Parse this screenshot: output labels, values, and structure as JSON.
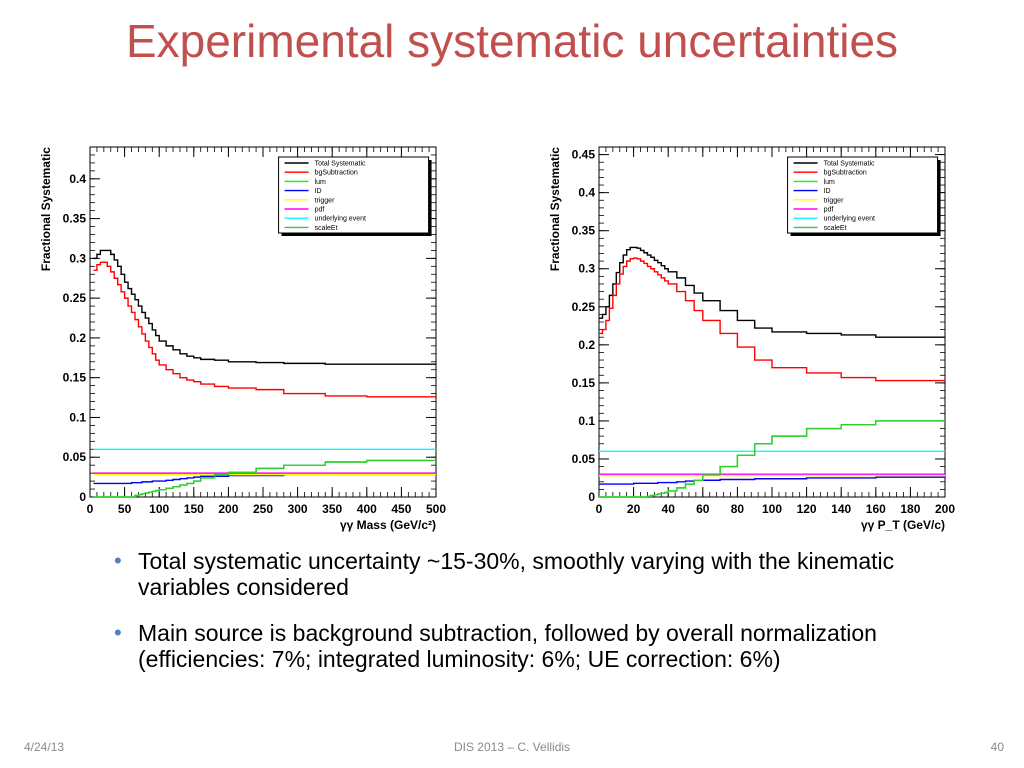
{
  "title": "Experimental systematic uncertainties",
  "chart_data": [
    {
      "type": "line",
      "xlabel": "γγ Mass (GeV/c²)",
      "ylabel": "Fractional Systematic",
      "xlim": [
        0,
        500
      ],
      "ylim": [
        0,
        0.44
      ],
      "xticks": [
        0,
        50,
        100,
        150,
        200,
        250,
        300,
        350,
        400,
        450,
        500
      ],
      "xtick_labels": [
        "0",
        "50",
        "100",
        "150",
        "200",
        "250",
        "300",
        "350",
        "400",
        "450",
        "500"
      ],
      "yticks": [
        0,
        0.05,
        0.1,
        0.15,
        0.2,
        0.25,
        0.3,
        0.35,
        0.4
      ],
      "ytick_labels": [
        "0",
        "0.05",
        "0.1",
        "0.15",
        "0.2",
        "0.25",
        "0.3",
        "0.35",
        "0.4"
      ],
      "legend_position": "top-right",
      "x_edges": [
        5,
        10,
        15,
        20,
        25,
        30,
        35,
        40,
        45,
        50,
        55,
        60,
        65,
        70,
        75,
        80,
        85,
        90,
        95,
        100,
        110,
        120,
        130,
        140,
        150,
        160,
        180,
        200,
        240,
        280,
        340,
        400,
        500
      ],
      "series": [
        {
          "name": "Total Systematic",
          "color": "#000000",
          "values": [
            0.3,
            0.305,
            0.31,
            0.31,
            0.31,
            0.305,
            0.298,
            0.29,
            0.28,
            0.27,
            0.262,
            0.255,
            0.248,
            0.24,
            0.232,
            0.225,
            0.218,
            0.21,
            0.203,
            0.196,
            0.19,
            0.185,
            0.18,
            0.177,
            0.175,
            0.173,
            0.172,
            0.17,
            0.169,
            0.168,
            0.167,
            0.167
          ]
        },
        {
          "name": "bgSubtraction",
          "color": "#ff0000",
          "values": [
            0.285,
            0.292,
            0.295,
            0.295,
            0.29,
            0.283,
            0.275,
            0.267,
            0.258,
            0.25,
            0.24,
            0.232,
            0.223,
            0.214,
            0.205,
            0.196,
            0.188,
            0.18,
            0.172,
            0.166,
            0.16,
            0.155,
            0.15,
            0.147,
            0.145,
            0.142,
            0.139,
            0.137,
            0.135,
            0.13,
            0.127,
            0.126
          ]
        },
        {
          "name": "lum",
          "color": "#00ff00",
          "values": [
            0,
            0,
            0,
            0,
            0,
            0,
            0,
            0,
            0,
            0,
            0,
            0,
            0.002,
            0.003,
            0.004,
            0.005,
            0.006,
            0.007,
            0.008,
            0.009,
            0.011,
            0.013,
            0.015,
            0.017,
            0.02,
            0.024,
            0.028,
            0.031,
            0.036,
            0.04,
            0.044,
            0.046
          ]
        },
        {
          "name": "ID",
          "color": "#0000ff",
          "values": [
            0.017,
            0.017,
            0.017,
            0.017,
            0.017,
            0.017,
            0.017,
            0.017,
            0.017,
            0.017,
            0.017,
            0.018,
            0.018,
            0.018,
            0.019,
            0.019,
            0.019,
            0.02,
            0.02,
            0.02,
            0.021,
            0.022,
            0.023,
            0.024,
            0.025,
            0.026,
            0.026,
            0.027,
            0.027,
            0.028,
            0.028,
            0.028
          ]
        },
        {
          "name": "trigger",
          "color": "#ffff00",
          "values": [
            0.028,
            0.028,
            0.028,
            0.028,
            0.028,
            0.028,
            0.028,
            0.028,
            0.028,
            0.028,
            0.028,
            0.028,
            0.028,
            0.028,
            0.028,
            0.028,
            0.028,
            0.028,
            0.028,
            0.028,
            0.028,
            0.028,
            0.028,
            0.028,
            0.028,
            0.028,
            0.028,
            0.028,
            0.028,
            0.028,
            0.028,
            0.028
          ]
        },
        {
          "name": "pdf",
          "color": "#ff00ff",
          "values": [
            0.03,
            0.03,
            0.03,
            0.03,
            0.03,
            0.03,
            0.03,
            0.03,
            0.03,
            0.03,
            0.03,
            0.03,
            0.03,
            0.03,
            0.03,
            0.03,
            0.03,
            0.03,
            0.03,
            0.03,
            0.03,
            0.03,
            0.03,
            0.03,
            0.03,
            0.03,
            0.03,
            0.03,
            0.03,
            0.03,
            0.03,
            0.03
          ]
        },
        {
          "name": "underlying event",
          "color": "#00ffff",
          "values": [
            0.06,
            0.06,
            0.06,
            0.06,
            0.06,
            0.06,
            0.06,
            0.06,
            0.06,
            0.06,
            0.06,
            0.06,
            0.06,
            0.06,
            0.06,
            0.06,
            0.06,
            0.06,
            0.06,
            0.06,
            0.06,
            0.06,
            0.06,
            0.06,
            0.06,
            0.06,
            0.06,
            0.06,
            0.06,
            0.06,
            0.06,
            0.06
          ]
        },
        {
          "name": "scaleEt",
          "color": "#33cc33",
          "values": [
            0,
            0,
            0,
            0,
            0,
            0,
            0,
            0,
            0,
            0,
            0,
            0,
            0.002,
            0.003,
            0.004,
            0.005,
            0.006,
            0.007,
            0.008,
            0.009,
            0.011,
            0.013,
            0.015,
            0.017,
            0.02,
            0.024,
            0.028,
            0.031,
            0.036,
            0.04,
            0.044,
            0.046
          ]
        }
      ]
    },
    {
      "type": "line",
      "xlabel": "γγ P_T (GeV/c)",
      "ylabel": "Fractional Systematic",
      "xlim": [
        0,
        200
      ],
      "ylim": [
        0,
        0.46
      ],
      "xticks": [
        0,
        20,
        40,
        60,
        80,
        100,
        120,
        140,
        160,
        180,
        200
      ],
      "xtick_labels": [
        "0",
        "20",
        "40",
        "60",
        "80",
        "100",
        "120",
        "140",
        "160",
        "180",
        "200"
      ],
      "yticks": [
        0,
        0.05,
        0.1,
        0.15,
        0.2,
        0.25,
        0.3,
        0.35,
        0.4,
        0.45
      ],
      "ytick_labels": [
        "0",
        "0.05",
        "0.1",
        "0.15",
        "0.2",
        "0.25",
        "0.3",
        "0.35",
        "0.4",
        "0.45"
      ],
      "legend_position": "top-right",
      "x_edges": [
        0,
        2,
        4,
        6,
        8,
        10,
        12,
        14,
        16,
        18,
        20,
        22,
        24,
        26,
        28,
        30,
        32,
        34,
        36,
        38,
        40,
        45,
        50,
        55,
        60,
        70,
        80,
        90,
        100,
        120,
        140,
        160,
        200
      ],
      "series": [
        {
          "name": "Total Systematic",
          "color": "#000000",
          "values": [
            0.235,
            0.24,
            0.25,
            0.265,
            0.28,
            0.295,
            0.308,
            0.318,
            0.325,
            0.328,
            0.328,
            0.327,
            0.324,
            0.321,
            0.318,
            0.315,
            0.311,
            0.308,
            0.304,
            0.3,
            0.296,
            0.288,
            0.278,
            0.268,
            0.258,
            0.245,
            0.232,
            0.222,
            0.217,
            0.215,
            0.213,
            0.21
          ]
        },
        {
          "name": "bgSubtraction",
          "color": "#ff0000",
          "values": [
            0.215,
            0.22,
            0.232,
            0.248,
            0.265,
            0.28,
            0.293,
            0.303,
            0.31,
            0.313,
            0.314,
            0.313,
            0.31,
            0.307,
            0.303,
            0.3,
            0.296,
            0.292,
            0.288,
            0.284,
            0.28,
            0.27,
            0.258,
            0.245,
            0.232,
            0.215,
            0.197,
            0.18,
            0.17,
            0.163,
            0.157,
            0.153
          ]
        },
        {
          "name": "lum",
          "color": "#00ff00",
          "values": [
            0,
            0,
            0,
            0,
            0,
            0,
            0,
            0,
            0,
            0,
            0,
            0,
            0,
            0,
            0.001,
            0.002,
            0.003,
            0.004,
            0.005,
            0.006,
            0.008,
            0.012,
            0.017,
            0.022,
            0.029,
            0.04,
            0.055,
            0.07,
            0.08,
            0.09,
            0.095,
            0.1
          ]
        },
        {
          "name": "ID",
          "color": "#0000ff",
          "values": [
            0.017,
            0.017,
            0.017,
            0.017,
            0.017,
            0.017,
            0.017,
            0.017,
            0.017,
            0.017,
            0.018,
            0.018,
            0.018,
            0.018,
            0.018,
            0.018,
            0.018,
            0.019,
            0.019,
            0.019,
            0.019,
            0.02,
            0.021,
            0.022,
            0.022,
            0.023,
            0.023,
            0.024,
            0.024,
            0.025,
            0.025,
            0.026
          ]
        },
        {
          "name": "trigger",
          "color": "#ffff00",
          "values": [
            0.028,
            0.028,
            0.028,
            0.028,
            0.028,
            0.028,
            0.028,
            0.028,
            0.028,
            0.028,
            0.028,
            0.028,
            0.028,
            0.028,
            0.028,
            0.028,
            0.028,
            0.028,
            0.028,
            0.028,
            0.028,
            0.028,
            0.028,
            0.028,
            0.028,
            0.028,
            0.028,
            0.028,
            0.028,
            0.028,
            0.028,
            0.028
          ]
        },
        {
          "name": "pdf",
          "color": "#ff00ff",
          "values": [
            0.03,
            0.03,
            0.03,
            0.03,
            0.03,
            0.03,
            0.03,
            0.03,
            0.03,
            0.03,
            0.03,
            0.03,
            0.03,
            0.03,
            0.03,
            0.03,
            0.03,
            0.03,
            0.03,
            0.03,
            0.03,
            0.03,
            0.03,
            0.03,
            0.03,
            0.03,
            0.03,
            0.03,
            0.03,
            0.03,
            0.03,
            0.03
          ]
        },
        {
          "name": "underlying event",
          "color": "#00ffff",
          "values": [
            0.06,
            0.06,
            0.06,
            0.06,
            0.06,
            0.06,
            0.06,
            0.06,
            0.06,
            0.06,
            0.06,
            0.06,
            0.06,
            0.06,
            0.06,
            0.06,
            0.06,
            0.06,
            0.06,
            0.06,
            0.06,
            0.06,
            0.06,
            0.06,
            0.06,
            0.06,
            0.06,
            0.06,
            0.06,
            0.06,
            0.06,
            0.06
          ]
        },
        {
          "name": "scaleEt",
          "color": "#33cc33",
          "values": [
            0,
            0,
            0,
            0,
            0,
            0,
            0,
            0,
            0,
            0,
            0,
            0,
            0,
            0,
            0.001,
            0.002,
            0.003,
            0.004,
            0.005,
            0.006,
            0.008,
            0.012,
            0.017,
            0.022,
            0.029,
            0.04,
            0.055,
            0.07,
            0.08,
            0.09,
            0.095,
            0.1
          ]
        }
      ]
    }
  ],
  "bullets": [
    "Total systematic uncertainty ~15-30%, smoothly varying with the kinematic variables considered",
    "Main source is background subtraction, followed by overall normalization (efficiencies: 7%; integrated luminosity: 6%; UE correction: 6%)"
  ],
  "bullet_color": "#4f81bd",
  "title_color": "#c0504d",
  "footer": {
    "date": "4/24/13",
    "center": "DIS 2013 – C. Vellidis",
    "page": "40"
  }
}
